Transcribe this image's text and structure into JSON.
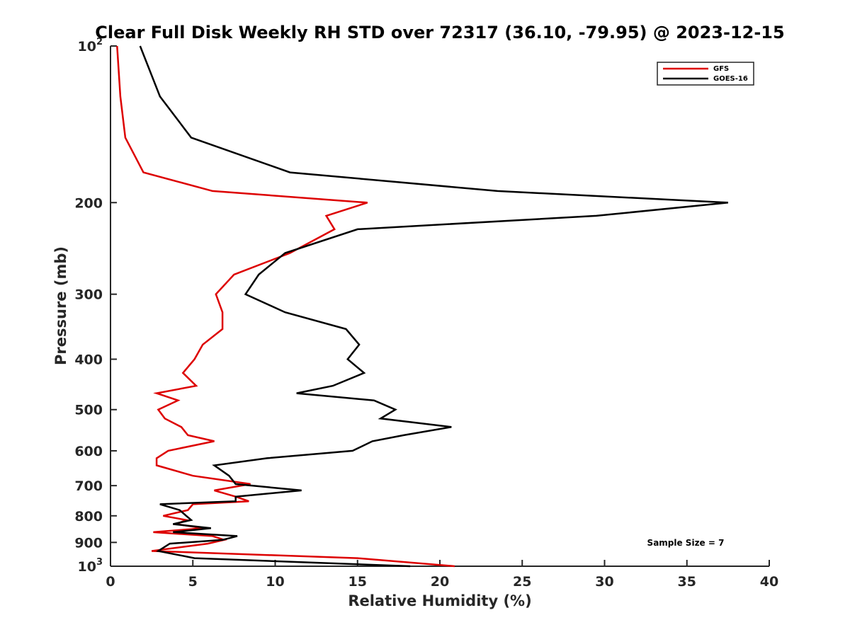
{
  "chart_data": {
    "type": "line",
    "title": "Clear Full Disk Weekly RH STD over 72317 (36.10, -79.95) @ 2023-12-15",
    "xlabel": "Relative Humidity (%)",
    "ylabel": "Pressure (mb)",
    "xlim": [
      0,
      40
    ],
    "ylim": [
      100,
      1000
    ],
    "yscale": "log",
    "y_reversed": true,
    "x_ticks": [
      0,
      5,
      10,
      15,
      20,
      25,
      30,
      35,
      40
    ],
    "y_ticks": [
      {
        "value": 100,
        "base": "10",
        "exp": "2"
      },
      {
        "value": 200,
        "label": "200"
      },
      {
        "value": 300,
        "label": "300"
      },
      {
        "value": 400,
        "label": "400"
      },
      {
        "value": 500,
        "label": "500"
      },
      {
        "value": 600,
        "label": "600"
      },
      {
        "value": 700,
        "label": "700"
      },
      {
        "value": 800,
        "label": "800"
      },
      {
        "value": 900,
        "label": "900"
      },
      {
        "value": 1000,
        "base": "10",
        "exp": "3"
      }
    ],
    "grid": false,
    "legend_position": "top-right",
    "annotation": "Sample Size = 7",
    "series": [
      {
        "name": "GFS",
        "color": "#dd0000",
        "points": [
          [
            0.4,
            100
          ],
          [
            0.6,
            125
          ],
          [
            0.9,
            150
          ],
          [
            2.0,
            175
          ],
          [
            6.2,
            190
          ],
          [
            15.6,
            200
          ],
          [
            13.1,
            212
          ],
          [
            13.6,
            225
          ],
          [
            10.9,
            250
          ],
          [
            7.5,
            275
          ],
          [
            6.4,
            300
          ],
          [
            6.8,
            325
          ],
          [
            6.8,
            350
          ],
          [
            5.6,
            375
          ],
          [
            5.1,
            400
          ],
          [
            4.4,
            425
          ],
          [
            5.2,
            450
          ],
          [
            2.8,
            465
          ],
          [
            4.1,
            480
          ],
          [
            2.9,
            500
          ],
          [
            3.3,
            520
          ],
          [
            4.3,
            540
          ],
          [
            4.7,
            560
          ],
          [
            6.3,
            575
          ],
          [
            3.5,
            600
          ],
          [
            2.8,
            620
          ],
          [
            2.8,
            640
          ],
          [
            5.0,
            670
          ],
          [
            8.5,
            695
          ],
          [
            6.3,
            715
          ],
          [
            7.6,
            735
          ],
          [
            8.4,
            750
          ],
          [
            5.0,
            760
          ],
          [
            4.7,
            780
          ],
          [
            3.2,
            800
          ],
          [
            4.6,
            815
          ],
          [
            4.0,
            830
          ],
          [
            5.6,
            845
          ],
          [
            2.6,
            860
          ],
          [
            6.2,
            875
          ],
          [
            6.9,
            890
          ],
          [
            5.9,
            905
          ],
          [
            2.5,
            935
          ],
          [
            15.0,
            965
          ],
          [
            20.9,
            1000
          ]
        ]
      },
      {
        "name": "GOES-16",
        "color": "#000000",
        "points": [
          [
            1.8,
            100
          ],
          [
            3.0,
            125
          ],
          [
            4.9,
            150
          ],
          [
            10.9,
            175
          ],
          [
            23.5,
            190
          ],
          [
            37.5,
            200
          ],
          [
            29.5,
            212
          ],
          [
            15.0,
            225
          ],
          [
            10.6,
            250
          ],
          [
            9.0,
            275
          ],
          [
            8.2,
            300
          ],
          [
            10.6,
            325
          ],
          [
            14.3,
            350
          ],
          [
            15.1,
            375
          ],
          [
            14.4,
            400
          ],
          [
            15.4,
            425
          ],
          [
            13.5,
            450
          ],
          [
            11.3,
            465
          ],
          [
            16.0,
            480
          ],
          [
            17.3,
            500
          ],
          [
            16.4,
            520
          ],
          [
            20.7,
            540
          ],
          [
            17.8,
            560
          ],
          [
            15.9,
            575
          ],
          [
            14.7,
            600
          ],
          [
            9.5,
            620
          ],
          [
            6.3,
            640
          ],
          [
            7.2,
            670
          ],
          [
            7.6,
            695
          ],
          [
            11.6,
            715
          ],
          [
            7.6,
            735
          ],
          [
            7.6,
            750
          ],
          [
            3.0,
            760
          ],
          [
            4.2,
            780
          ],
          [
            4.6,
            800
          ],
          [
            4.9,
            815
          ],
          [
            3.8,
            830
          ],
          [
            6.1,
            845
          ],
          [
            3.8,
            860
          ],
          [
            7.7,
            875
          ],
          [
            6.8,
            890
          ],
          [
            3.6,
            905
          ],
          [
            2.9,
            935
          ],
          [
            5.1,
            965
          ],
          [
            18.2,
            1000
          ]
        ]
      }
    ]
  }
}
